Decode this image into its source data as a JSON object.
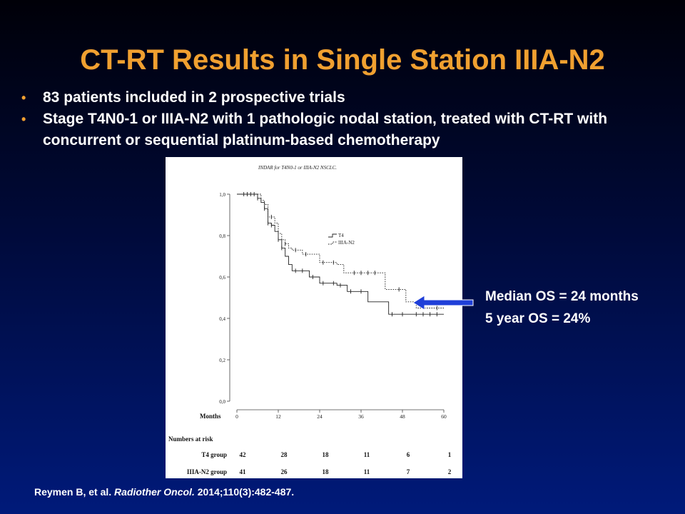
{
  "slide": {
    "title": "CT-RT Results in Single Station IIIA-N2",
    "bullets": [
      "83 patients included in 2 prospective trials",
      "Stage T4N0-1 or IIIA-N2 with 1 pathologic nodal station, treated with CT-RT with concurrent or sequential platinum-based chemotherapy"
    ],
    "annotation": [
      "Median OS = 24 months",
      "5 year OS = 24%"
    ],
    "citation": {
      "authors": "Reymen B, et al.",
      "journal": "Radiother Oncol.",
      "details": "2014;110(3):482-487."
    },
    "colors": {
      "title": "#f0a030",
      "arrow": "#1f3fd8"
    }
  },
  "chart_data": {
    "type": "line",
    "title": "INDAR for T4N0-1 or IIIA-N2 NSCLC.",
    "xlabel": "Months",
    "ylabel": "",
    "xlim": [
      0,
      60
    ],
    "ylim": [
      0.0,
      1.0
    ],
    "x_ticks": [
      0,
      12,
      24,
      36,
      48,
      60
    ],
    "y_ticks": [
      "0,0",
      "0,2",
      "0,4",
      "0,6",
      "0,8",
      "1,0"
    ],
    "y_tick_values": [
      0.0,
      0.2,
      0.4,
      0.6,
      0.8,
      1.0
    ],
    "legend_position": "upper-middle",
    "series": [
      {
        "name": "T4",
        "style": "solid",
        "x": [
          0,
          5,
          6,
          7,
          8,
          9,
          10,
          11,
          12,
          13,
          14,
          15,
          16,
          18,
          21,
          24,
          27,
          29,
          32,
          35,
          38,
          40,
          44,
          50,
          60
        ],
        "y": [
          1.0,
          1.0,
          0.98,
          0.96,
          0.93,
          0.86,
          0.85,
          0.82,
          0.78,
          0.74,
          0.7,
          0.66,
          0.63,
          0.63,
          0.6,
          0.57,
          0.57,
          0.56,
          0.53,
          0.53,
          0.48,
          0.48,
          0.42,
          0.42,
          0.42
        ],
        "censor_x": [
          2,
          4,
          6,
          8,
          9,
          10,
          12,
          13,
          17,
          19,
          22,
          25,
          28,
          30,
          33,
          36,
          45,
          48,
          52,
          54,
          56,
          58
        ],
        "censor_y": [
          1.0,
          1.0,
          0.98,
          0.93,
          0.86,
          0.85,
          0.78,
          0.74,
          0.63,
          0.63,
          0.6,
          0.57,
          0.57,
          0.56,
          0.53,
          0.53,
          0.42,
          0.42,
          0.42,
          0.42,
          0.42,
          0.42
        ]
      },
      {
        "name": "IIIA-N2",
        "style": "dotted",
        "x": [
          0,
          6,
          7,
          8,
          9,
          11,
          12,
          13,
          14,
          15,
          16,
          19,
          22,
          24,
          27,
          29,
          31,
          33,
          42,
          43,
          46,
          48,
          49,
          52,
          60
        ],
        "y": [
          1.0,
          1.0,
          0.97,
          0.95,
          0.89,
          0.86,
          0.81,
          0.78,
          0.76,
          0.74,
          0.73,
          0.71,
          0.71,
          0.67,
          0.67,
          0.66,
          0.62,
          0.62,
          0.62,
          0.54,
          0.54,
          0.54,
          0.48,
          0.45,
          0.45
        ],
        "censor_x": [
          3,
          5,
          10,
          14,
          17,
          20,
          25,
          28,
          34,
          36,
          38,
          40,
          47,
          58
        ],
        "censor_y": [
          1.0,
          1.0,
          0.89,
          0.76,
          0.73,
          0.71,
          0.67,
          0.67,
          0.62,
          0.62,
          0.62,
          0.62,
          0.54,
          0.45
        ]
      }
    ],
    "risk_table": {
      "header": "Numbers at risk",
      "times": [
        0,
        12,
        24,
        36,
        48,
        60
      ],
      "rows": [
        {
          "label": "T4 group",
          "values": [
            42,
            28,
            18,
            11,
            6,
            1
          ]
        },
        {
          "label": "IIIA-N2 group",
          "values": [
            41,
            26,
            18,
            11,
            7,
            2
          ]
        }
      ]
    }
  }
}
